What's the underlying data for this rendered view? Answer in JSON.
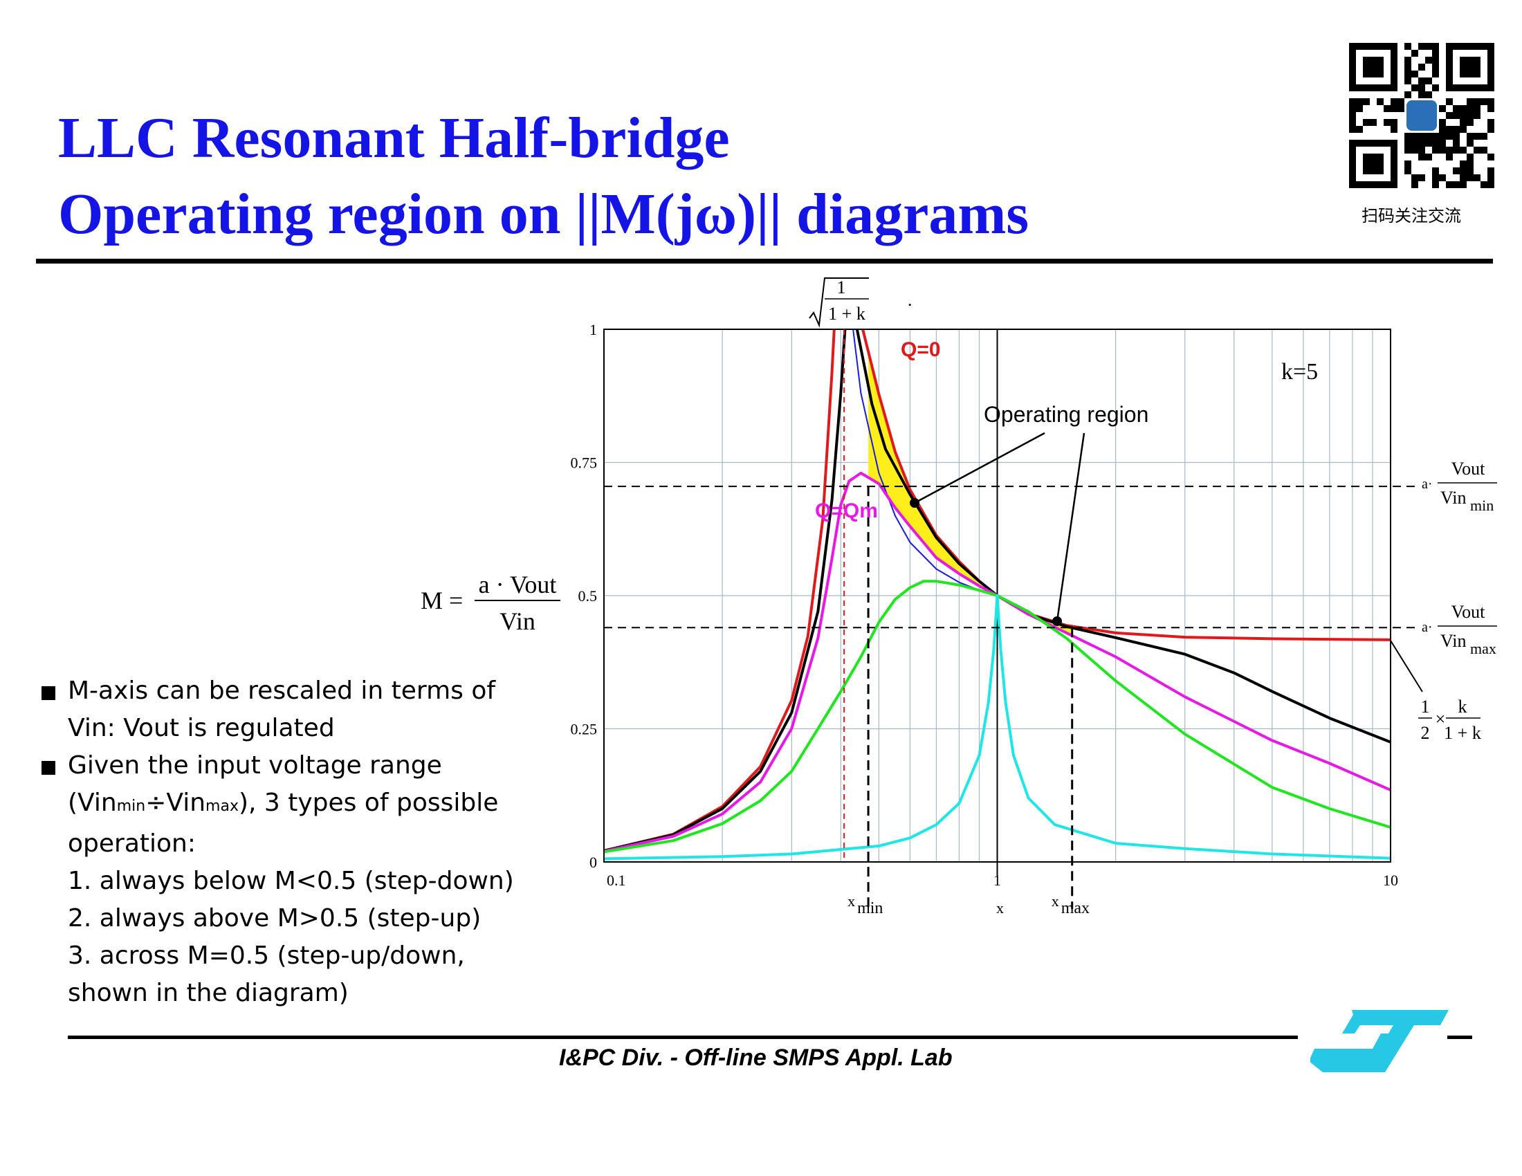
{
  "title": {
    "line1": "LLC Resonant Half-bridge",
    "line2": "Operating region on ||M(jω)|| diagrams"
  },
  "qr": {
    "caption": "扫码关注交流"
  },
  "footer": {
    "text": "I&PC Div. - Off-line SMPS Appl. Lab"
  },
  "bullets": {
    "b1": "M-axis can be rescaled in terms of Vin: Vout is regulated",
    "b2_pre": "Given the input voltage range (Vin",
    "b2_min_sub": "min",
    "b2_mid": "÷Vin",
    "b2_max_sub": "max",
    "b2_post": "), 3 types of possible operation:",
    "item1": "1. always below M<0.5 (step-down)",
    "item2": "2. always above M>0.5 (step-up)",
    "item3": "3. across M=0.5 (step-up/down, shown in the diagram)"
  },
  "chart_data": {
    "type": "line",
    "x_scale": "log",
    "xlim": [
      0.1,
      10
    ],
    "ylim": [
      0,
      1
    ],
    "k": 5,
    "x_tick_labels": [
      "0.1",
      "1",
      "10"
    ],
    "y_tick_labels": [
      "0",
      "0.25",
      "0.5",
      "0.75",
      "1"
    ],
    "y_ticks": [
      0,
      0.25,
      0.5,
      0.75,
      1
    ],
    "grid": true,
    "lines": {
      "fr2_x": 0.408,
      "xmin": 0.47,
      "xmax": 1.55,
      "x_one": 1,
      "m_vinmin": 0.705,
      "m_vinmax": 0.44
    },
    "series": [
      {
        "name": "Q=0",
        "color": "#e0191b",
        "points": [
          [
            0.1,
            0.021
          ],
          [
            0.15,
            0.052
          ],
          [
            0.2,
            0.104
          ],
          [
            0.25,
            0.179
          ],
          [
            0.3,
            0.303
          ],
          [
            0.33,
            0.424
          ],
          [
            0.36,
            0.643
          ],
          [
            0.38,
            0.92
          ],
          [
            0.385,
            1.0
          ]
        ]
      },
      {
        "name": "Q=0 (upper branch)",
        "color": "#e0191b",
        "points": [
          [
            0.455,
            1.0
          ],
          [
            0.5,
            0.878
          ],
          [
            0.55,
            0.77
          ],
          [
            0.6,
            0.699
          ],
          [
            0.7,
            0.613
          ],
          [
            0.8,
            0.564
          ],
          [
            0.9,
            0.527
          ],
          [
            1.0,
            0.5
          ],
          [
            1.2,
            0.466
          ],
          [
            1.5,
            0.444
          ],
          [
            2,
            0.43
          ],
          [
            3,
            0.422
          ],
          [
            5,
            0.419
          ],
          [
            10,
            0.417
          ]
        ]
      },
      {
        "name": "black",
        "color": "#000000",
        "points": [
          [
            0.1,
            0.021
          ],
          [
            0.15,
            0.051
          ],
          [
            0.2,
            0.1
          ],
          [
            0.25,
            0.17
          ],
          [
            0.3,
            0.28
          ],
          [
            0.35,
            0.47
          ],
          [
            0.38,
            0.68
          ],
          [
            0.4,
            0.88
          ],
          [
            0.41,
            1.0
          ]
        ]
      },
      {
        "name": "black (upper branch)",
        "color": "#000000",
        "points": [
          [
            0.44,
            1.0
          ],
          [
            0.48,
            0.86
          ],
          [
            0.52,
            0.775
          ],
          [
            0.6,
            0.69
          ],
          [
            0.7,
            0.609
          ],
          [
            0.8,
            0.56
          ],
          [
            0.9,
            0.527
          ],
          [
            1.0,
            0.5
          ],
          [
            1.2,
            0.465
          ],
          [
            1.5,
            0.442
          ],
          [
            2,
            0.421
          ],
          [
            3,
            0.39
          ],
          [
            4,
            0.355
          ],
          [
            5,
            0.32
          ],
          [
            7,
            0.27
          ],
          [
            10,
            0.225
          ]
        ]
      },
      {
        "name": "blue",
        "color": "#1a1ae6",
        "points": [
          [
            0.43,
            1.0
          ],
          [
            0.45,
            0.88
          ],
          [
            0.5,
            0.73
          ],
          [
            0.55,
            0.65
          ],
          [
            0.6,
            0.6
          ],
          [
            0.7,
            0.55
          ],
          [
            0.8,
            0.525
          ],
          [
            0.9,
            0.51
          ],
          [
            1.0,
            0.5
          ]
        ]
      },
      {
        "name": "Q=Qm",
        "color": "#e619e6",
        "points": [
          [
            0.1,
            0.02
          ],
          [
            0.15,
            0.048
          ],
          [
            0.2,
            0.09
          ],
          [
            0.25,
            0.15
          ],
          [
            0.3,
            0.25
          ],
          [
            0.35,
            0.42
          ],
          [
            0.38,
            0.57
          ],
          [
            0.4,
            0.67
          ],
          [
            0.42,
            0.715
          ],
          [
            0.45,
            0.73
          ],
          [
            0.5,
            0.71
          ],
          [
            0.55,
            0.665
          ],
          [
            0.6,
            0.63
          ],
          [
            0.7,
            0.571
          ],
          [
            0.8,
            0.541
          ],
          [
            0.9,
            0.518
          ],
          [
            1.0,
            0.5
          ],
          [
            1.2,
            0.465
          ],
          [
            1.5,
            0.43
          ],
          [
            2,
            0.385
          ],
          [
            3,
            0.31
          ],
          [
            5,
            0.228
          ],
          [
            7,
            0.185
          ],
          [
            10,
            0.135
          ]
        ]
      },
      {
        "name": "green",
        "color": "#1fe61f",
        "points": [
          [
            0.1,
            0.019
          ],
          [
            0.15,
            0.04
          ],
          [
            0.2,
            0.072
          ],
          [
            0.25,
            0.115
          ],
          [
            0.3,
            0.17
          ],
          [
            0.35,
            0.25
          ],
          [
            0.4,
            0.32
          ],
          [
            0.45,
            0.385
          ],
          [
            0.5,
            0.45
          ],
          [
            0.55,
            0.493
          ],
          [
            0.6,
            0.515
          ],
          [
            0.65,
            0.527
          ],
          [
            0.7,
            0.527
          ],
          [
            0.8,
            0.52
          ],
          [
            0.9,
            0.51
          ],
          [
            1.0,
            0.5
          ],
          [
            1.2,
            0.47
          ],
          [
            1.5,
            0.42
          ],
          [
            2,
            0.34
          ],
          [
            3,
            0.24
          ],
          [
            5,
            0.14
          ],
          [
            7,
            0.1
          ],
          [
            10,
            0.065
          ]
        ]
      },
      {
        "name": "cyan",
        "color": "#1ee6e6",
        "points": [
          [
            0.1,
            0.006
          ],
          [
            0.2,
            0.01
          ],
          [
            0.3,
            0.015
          ],
          [
            0.5,
            0.03
          ],
          [
            0.6,
            0.045
          ],
          [
            0.7,
            0.07
          ],
          [
            0.8,
            0.11
          ],
          [
            0.9,
            0.2
          ],
          [
            0.95,
            0.3
          ],
          [
            0.98,
            0.4
          ],
          [
            1.0,
            0.5
          ],
          [
            1.02,
            0.4
          ],
          [
            1.05,
            0.3
          ],
          [
            1.1,
            0.2
          ],
          [
            1.2,
            0.12
          ],
          [
            1.4,
            0.07
          ],
          [
            2,
            0.035
          ],
          [
            3,
            0.025
          ],
          [
            5,
            0.015
          ],
          [
            10,
            0.007
          ]
        ]
      }
    ],
    "annotations": {
      "q0": "Q=0",
      "qm": "Q=Qm",
      "k_label": "k=5",
      "operating_region": "Operating region",
      "dot": ".",
      "one": "1",
      "one_plus_k": "1 + k",
      "y_eq_lhs": "M =",
      "y_eq_num": "a · Vout",
      "y_eq_den": "Vin",
      "a_dot": "a·",
      "vout": "Vout",
      "vin": "Vin",
      "sub_min": "min",
      "sub_max": "max",
      "half_num": "1",
      "half_den": "2",
      "times": "×",
      "k_num": "k",
      "x_label": "x",
      "x_letter": "x",
      "xmin_sub": "min",
      "xmax_sub": "max",
      "x_one_label": "1"
    }
  }
}
